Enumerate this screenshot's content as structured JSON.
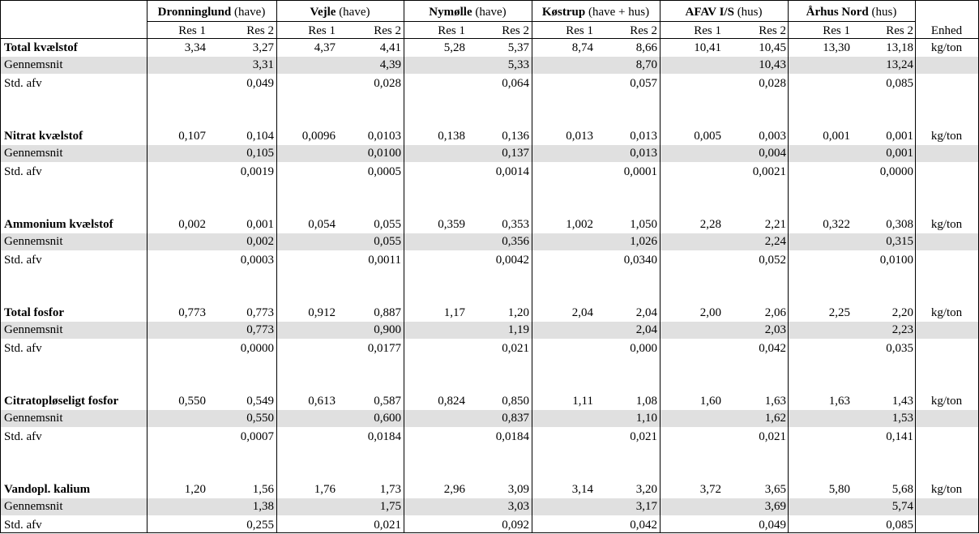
{
  "header": {
    "groups": [
      {
        "bold": "Dronninglund",
        "rest": " (have)"
      },
      {
        "bold": "Vejle",
        "rest": " (have)"
      },
      {
        "bold": "Nymølle",
        "rest": " (have)"
      },
      {
        "bold": "Køstrup",
        "rest": " (have + hus)"
      },
      {
        "bold": "AFAV I/S",
        "rest": " (hus)"
      },
      {
        "bold": "Århus Nord",
        "rest": " (hus)"
      }
    ],
    "res1": "Res 1",
    "res2": "Res 2",
    "unit_header": "Enhed"
  },
  "sections": [
    {
      "name": "Total kvælstof",
      "unit": "kg/ton",
      "values": [
        [
          "3,34",
          "3,27"
        ],
        [
          "4,37",
          "4,41"
        ],
        [
          "5,28",
          "5,37"
        ],
        [
          "8,74",
          "8,66"
        ],
        [
          "10,41",
          "10,45"
        ],
        [
          "13,30",
          "13,18"
        ]
      ],
      "mean_label": "Gennemsnit",
      "mean": [
        "3,31",
        "4,39",
        "5,33",
        "8,70",
        "10,43",
        "13,24"
      ],
      "std_label": "Std. afv",
      "std": [
        "0,049",
        "0,028",
        "0,064",
        "0,057",
        "0,028",
        "0,085"
      ]
    },
    {
      "name": "Nitrat kvælstof",
      "unit": "kg/ton",
      "values": [
        [
          "0,107",
          "0,104"
        ],
        [
          "0,0096",
          "0,0103"
        ],
        [
          "0,138",
          "0,136"
        ],
        [
          "0,013",
          "0,013"
        ],
        [
          "0,005",
          "0,003"
        ],
        [
          "0,001",
          "0,001"
        ]
      ],
      "mean_label": "Gennemsnit",
      "mean": [
        "0,105",
        "0,0100",
        "0,137",
        "0,013",
        "0,004",
        "0,001"
      ],
      "std_label": "Std. afv",
      "std": [
        "0,0019",
        "0,0005",
        "0,0014",
        "0,0001",
        "0,0021",
        "0,0000"
      ]
    },
    {
      "name": "Ammonium kvælstof",
      "unit": "kg/ton",
      "values": [
        [
          "0,002",
          "0,001"
        ],
        [
          "0,054",
          "0,055"
        ],
        [
          "0,359",
          "0,353"
        ],
        [
          "1,002",
          "1,050"
        ],
        [
          "2,28",
          "2,21"
        ],
        [
          "0,322",
          "0,308"
        ]
      ],
      "mean_label": "Gennemsnit",
      "mean": [
        "0,002",
        "0,055",
        "0,356",
        "1,026",
        "2,24",
        "0,315"
      ],
      "std_label": "Std. afv",
      "std": [
        "0,0003",
        "0,0011",
        "0,0042",
        "0,0340",
        "0,052",
        "0,0100"
      ]
    },
    {
      "name": "Total fosfor",
      "unit": "kg/ton",
      "values": [
        [
          "0,773",
          "0,773"
        ],
        [
          "0,912",
          "0,887"
        ],
        [
          "1,17",
          "1,20"
        ],
        [
          "2,04",
          "2,04"
        ],
        [
          "2,00",
          "2,06"
        ],
        [
          "2,25",
          "2,20"
        ]
      ],
      "mean_label": "Gennemsnit",
      "mean": [
        "0,773",
        "0,900",
        "1,19",
        "2,04",
        "2,03",
        "2,23"
      ],
      "std_label": "Std. afv",
      "std": [
        "0,0000",
        "0,0177",
        "0,021",
        "0,000",
        "0,042",
        "0,035"
      ]
    },
    {
      "name": "Citratopløseligt fosfor",
      "unit": "kg/ton",
      "values": [
        [
          "0,550",
          "0,549"
        ],
        [
          "0,613",
          "0,587"
        ],
        [
          "0,824",
          "0,850"
        ],
        [
          "1,11",
          "1,08"
        ],
        [
          "1,60",
          "1,63"
        ],
        [
          "1,63",
          "1,43"
        ]
      ],
      "mean_label": "Gennemsnit",
      "mean": [
        "0,550",
        "0,600",
        "0,837",
        "1,10",
        "1,62",
        "1,53"
      ],
      "std_label": "Std. afv",
      "std": [
        "0,0007",
        "0,0184",
        "0,0184",
        "0,021",
        "0,021",
        "0,141"
      ]
    },
    {
      "name": "Vandopl. kalium",
      "unit": "kg/ton",
      "values": [
        [
          "1,20",
          "1,56"
        ],
        [
          "1,76",
          "1,73"
        ],
        [
          "2,96",
          "3,09"
        ],
        [
          "3,14",
          "3,20"
        ],
        [
          "3,72",
          "3,65"
        ],
        [
          "5,80",
          "5,68"
        ]
      ],
      "mean_label": "Gennemsnit",
      "mean": [
        "1,38",
        "1,75",
        "3,03",
        "3,17",
        "3,69",
        "5,74"
      ],
      "std_label": "Std. afv",
      "std": [
        "0,255",
        "0,021",
        "0,092",
        "0,042",
        "0,049",
        "0,085"
      ]
    }
  ]
}
